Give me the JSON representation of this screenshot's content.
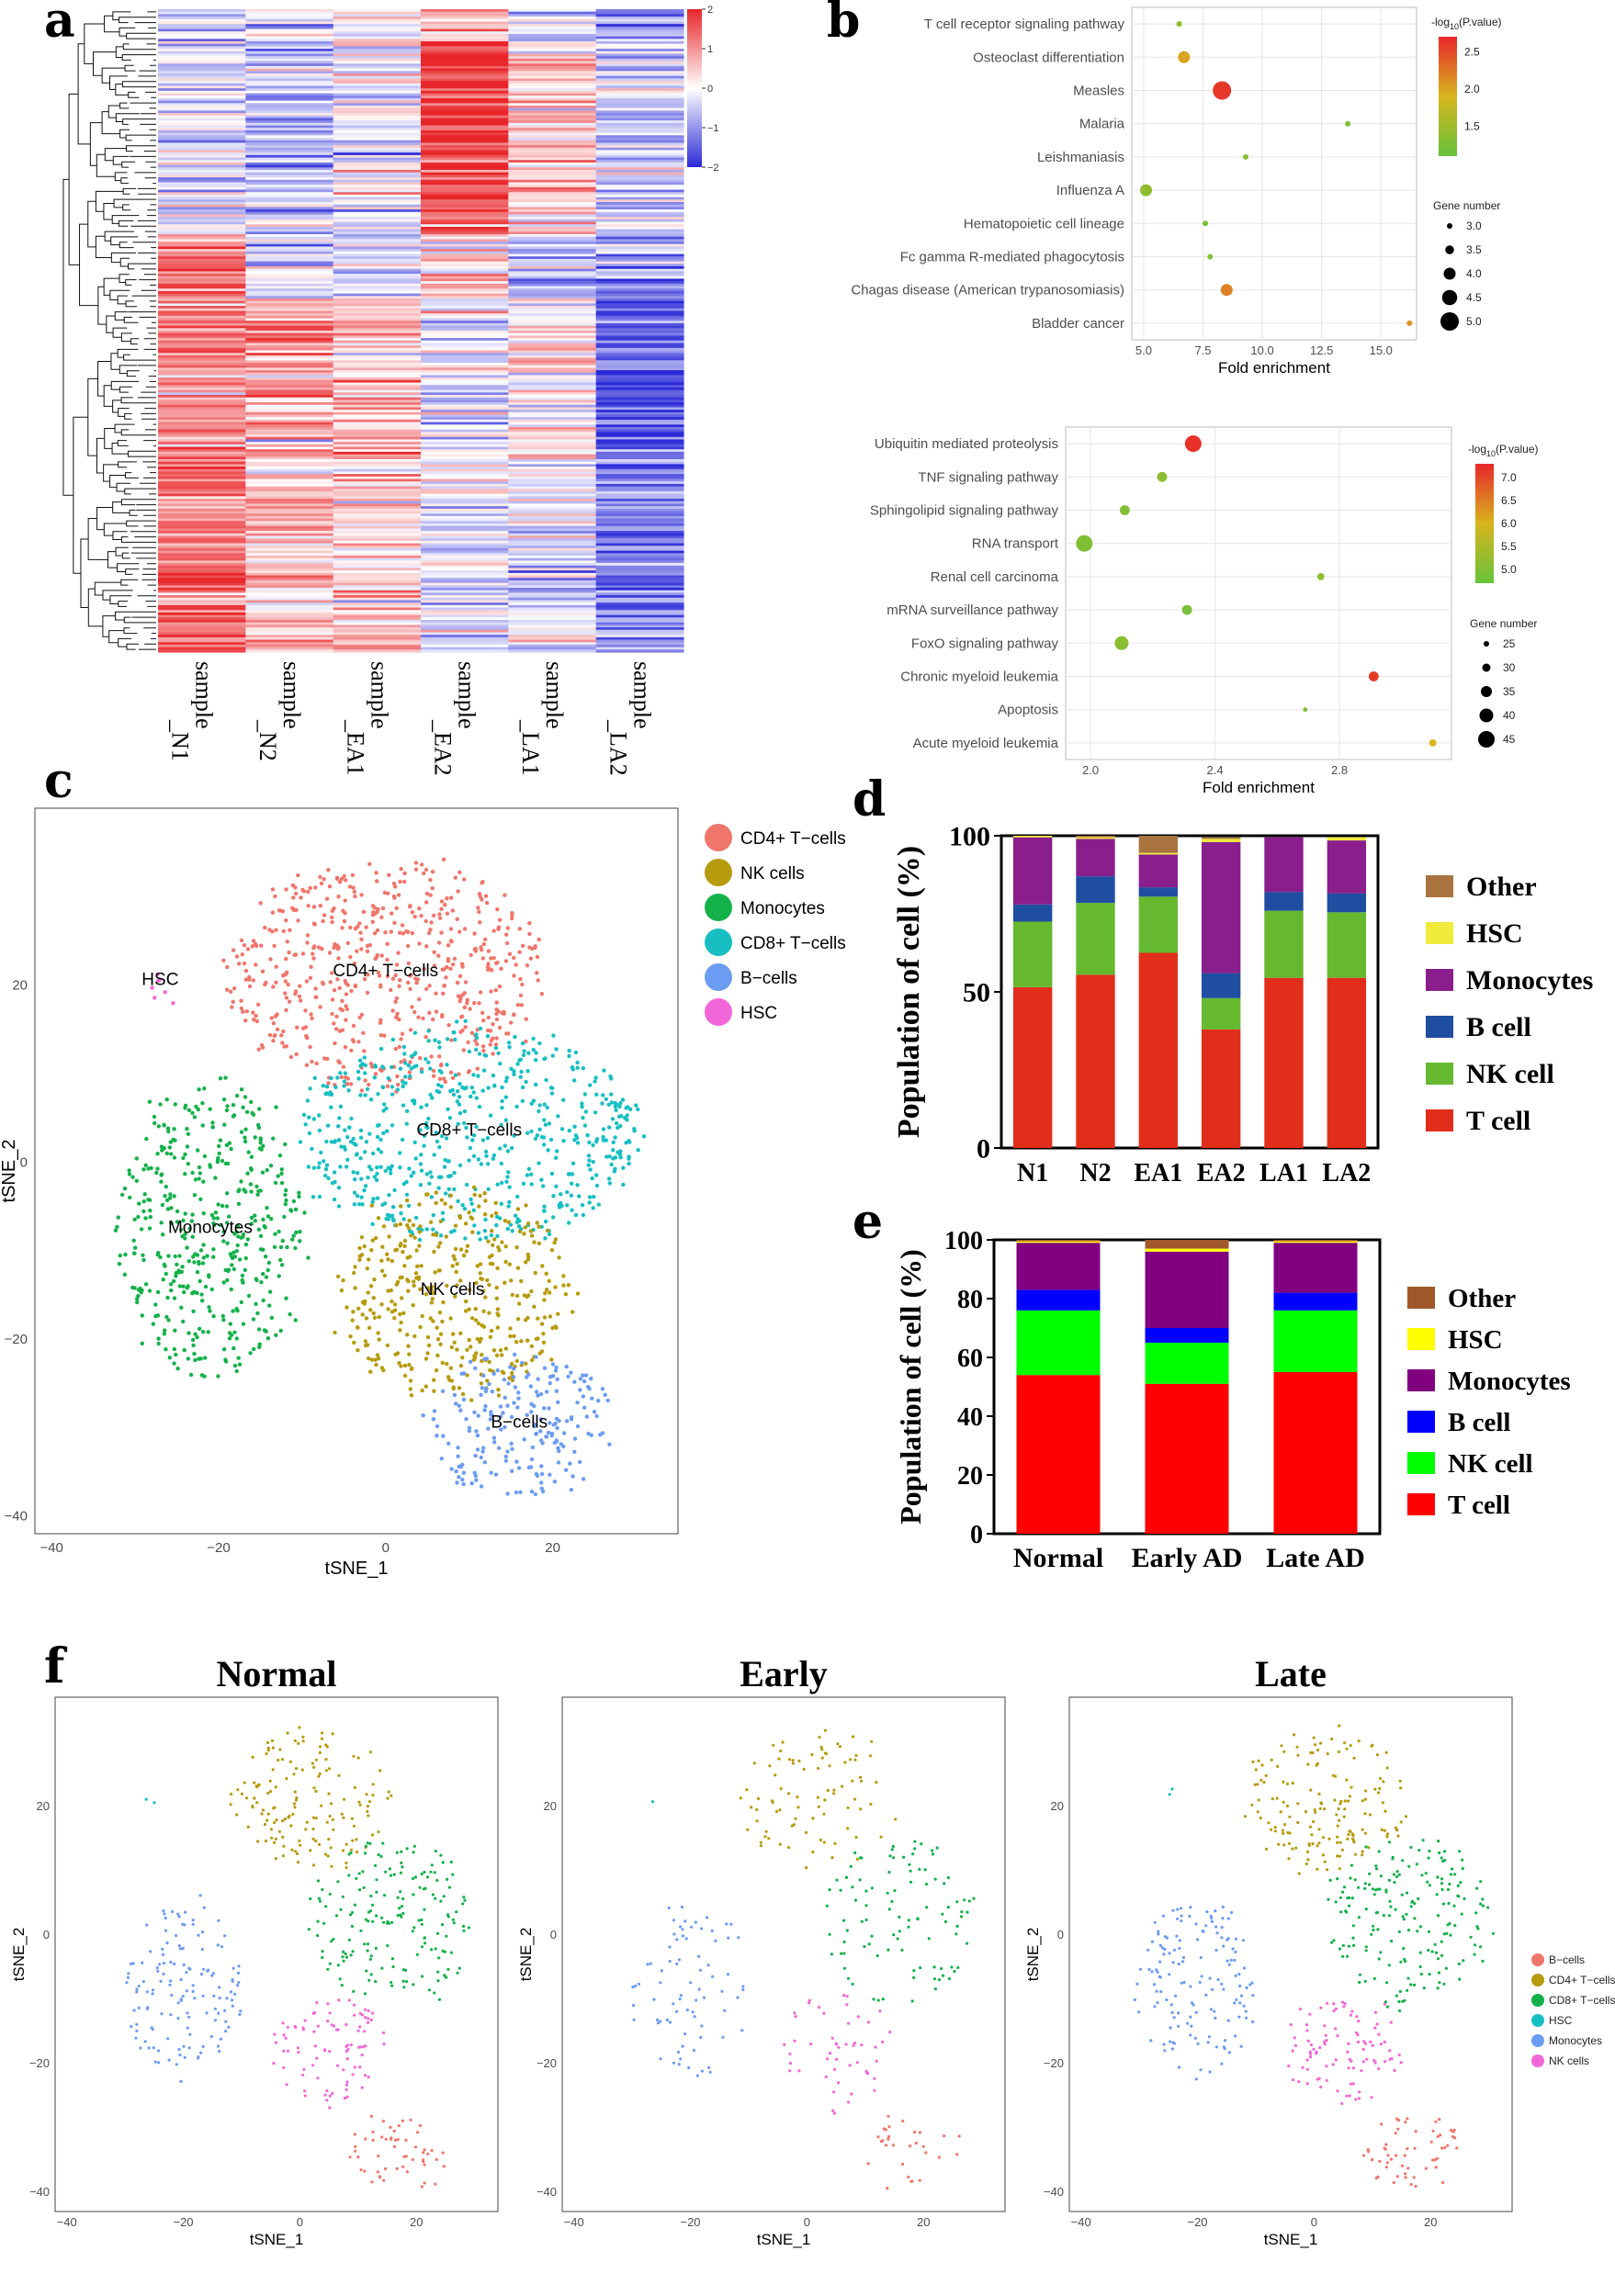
{
  "panel_labels": {
    "a": "a",
    "b": "b",
    "c": "c",
    "d": "d",
    "e": "e",
    "f": "f"
  },
  "colors": {
    "heat_low": "#2b2bd8",
    "heat_mid": "#ffffff",
    "heat_high": "#e8262a",
    "b_low": "#66c23a",
    "b_high": "#e8262a",
    "cd4": "#f0756b",
    "nk": "#b79b0f",
    "mono": "#14b14a",
    "cd8": "#17bfc2",
    "bcell": "#6b9cf2",
    "hsc": "#f267d8",
    "bar_other": "#a8733f",
    "bar_hsc": "#f0eb3a",
    "bar_mono": "#8a1e8c",
    "bar_bcell": "#1f4ea1",
    "bar_nk": "#66b92f",
    "bar_t": "#e22d1a",
    "e_other": "#a0582a",
    "e_hsc": "#ffff00",
    "e_mono": "#800080",
    "e_bcell": "#0000ff",
    "e_nk": "#00ff00",
    "e_t": "#ff0000"
  },
  "chart_data": [
    {
      "id": "a",
      "type": "heatmap",
      "columns": [
        "sample_N1",
        "sample_N2",
        "sample_EA1",
        "sample_EA2",
        "sample_LA1",
        "sample_LA2"
      ],
      "column_lines": [
        [
          "sample",
          "_N1"
        ],
        [
          "sample",
          "_N2"
        ],
        [
          "sample",
          "_EA1"
        ],
        [
          "sample",
          "_EA2"
        ],
        [
          "sample",
          "_LA1"
        ],
        [
          "sample",
          "_LA2"
        ]
      ],
      "colorbar_ticks": [
        2,
        1,
        0,
        -1,
        -2
      ],
      "row_blocks": [
        {
          "rows": "0-0.05",
          "values": [
            -0.4,
            -0.2,
            0.3,
            0.6,
            -0.3,
            -1.0
          ]
        },
        {
          "rows": "0.05-0.35",
          "values": [
            -0.3,
            -0.6,
            -0.1,
            1.8,
            0.4,
            -0.5
          ]
        },
        {
          "rows": "0.35-0.45",
          "values": [
            1.2,
            -0.3,
            -0.4,
            0.4,
            -0.6,
            -1.0
          ]
        },
        {
          "rows": "0.45-0.7",
          "values": [
            1.0,
            0.9,
            0.6,
            -0.4,
            0.3,
            -1.6
          ]
        },
        {
          "rows": "0.7-1.0",
          "values": [
            1.3,
            0.6,
            0.3,
            -0.3,
            -0.3,
            -1.2
          ]
        }
      ]
    },
    {
      "id": "b1",
      "type": "scatter",
      "categories": [
        "T cell receptor signaling pathway",
        "Osteoclast differentiation",
        "Measles",
        "Malaria",
        "Leishmaniasis",
        "Influenza A",
        "Hematopoietic cell lineage",
        "Fc gamma R-mediated phagocytosis",
        "Chagas disease (American trypanosomiasis)",
        "Bladder cancer"
      ],
      "points": [
        {
          "fold": 6.5,
          "gene": 3,
          "logp": 1.4
        },
        {
          "fold": 6.7,
          "gene": 4,
          "logp": 2.0
        },
        {
          "fold": 8.3,
          "gene": 5,
          "logp": 2.6
        },
        {
          "fold": 13.6,
          "gene": 3,
          "logp": 1.3
        },
        {
          "fold": 9.3,
          "gene": 3,
          "logp": 1.3
        },
        {
          "fold": 5.1,
          "gene": 4,
          "logp": 1.4
        },
        {
          "fold": 7.6,
          "gene": 3,
          "logp": 1.2
        },
        {
          "fold": 7.8,
          "gene": 3,
          "logp": 1.3
        },
        {
          "fold": 8.5,
          "gene": 4,
          "logp": 2.2
        },
        {
          "fold": 16.2,
          "gene": 3,
          "logp": 2.1
        }
      ],
      "xlabel": "Fold enrichment",
      "xlim": [
        4.5,
        16.5
      ],
      "xticks": [
        "5.0",
        "7.5",
        "10.0",
        "12.5",
        "15.0"
      ],
      "color_title": "-log10(P.value)",
      "color_title_prefix": "-log",
      "color_title_sub": "10",
      "color_title_suffix": "(P.value)",
      "color_ticks": [
        "2.5",
        "2.0",
        "1.5"
      ],
      "color_range": [
        1.1,
        2.7
      ],
      "size_title": "Gene number",
      "size_ticks": [
        "3.0",
        "3.5",
        "4.0",
        "4.5",
        "5.0"
      ]
    },
    {
      "id": "b2",
      "type": "scatter",
      "categories": [
        "Ubiquitin mediated proteolysis",
        "TNF signaling pathway",
        "Sphingolipid signaling pathway",
        "RNA transport",
        "Renal cell carcinoma",
        "mRNA surveillance pathway",
        "FoxO signaling pathway",
        "Chronic myeloid leukemia",
        "Apoptosis",
        "Acute myeloid leukemia"
      ],
      "points": [
        {
          "fold": 2.33,
          "gene": 45,
          "logp": 7.2
        },
        {
          "fold": 2.23,
          "gene": 33,
          "logp": 5.1
        },
        {
          "fold": 2.11,
          "gene": 33,
          "logp": 5.0
        },
        {
          "fold": 1.98,
          "gene": 45,
          "logp": 5.0
        },
        {
          "fold": 2.74,
          "gene": 28,
          "logp": 5.2
        },
        {
          "fold": 2.31,
          "gene": 33,
          "logp": 4.9
        },
        {
          "fold": 2.1,
          "gene": 40,
          "logp": 5.1
        },
        {
          "fold": 2.91,
          "gene": 33,
          "logp": 7.1
        },
        {
          "fold": 2.69,
          "gene": 23,
          "logp": 5.0
        },
        {
          "fold": 3.1,
          "gene": 28,
          "logp": 6.0
        }
      ],
      "xlabel": "Fold enrichment",
      "xlim": [
        1.92,
        3.16
      ],
      "xticks": [
        "2.0",
        "2.4",
        "2.8"
      ],
      "color_title": "-log10(P.value)",
      "color_title_prefix": "-log",
      "color_title_sub": "10",
      "color_title_suffix": "(P.value)",
      "color_ticks": [
        "7.0",
        "6.5",
        "6.0",
        "5.5",
        "5.0"
      ],
      "color_range": [
        4.7,
        7.3
      ],
      "size_title": "Gene number",
      "size_ticks": [
        "25",
        "30",
        "35",
        "40",
        "45"
      ]
    },
    {
      "id": "c",
      "type": "scatter",
      "xlabel": "tSNE_1",
      "ylabel": "tSNE_2",
      "xticks": [
        "−40",
        "−20",
        "0",
        "20"
      ],
      "yticks": [
        "20",
        "0",
        "−20",
        "−40"
      ],
      "xlim": [
        -42,
        35
      ],
      "ylim": [
        -42,
        40
      ],
      "legend": [
        "CD4+ T−cells",
        "NK cells",
        "Monocytes",
        "CD8+ T−cells",
        "B−cells",
        "HSC"
      ],
      "cluster_labels": [
        "CD4+ T−cells",
        "CD8+ T−cells",
        "Monocytes",
        "NK cells",
        "B−cells",
        "HSC"
      ],
      "clusters": [
        {
          "name": "CD4+ T−cells",
          "cx": 0,
          "cy": 21,
          "rx": 19,
          "ry": 13
        },
        {
          "name": "CD8+ T−cells",
          "cx": 10,
          "cy": 3,
          "rx": 21,
          "ry": 12
        },
        {
          "name": "Monocytes",
          "cx": -21,
          "cy": -8,
          "rx": 11,
          "ry": 17
        },
        {
          "name": "NK cells",
          "cx": 8,
          "cy": -15,
          "rx": 14,
          "ry": 12
        },
        {
          "name": "B−cells",
          "cx": 16,
          "cy": -30,
          "rx": 11,
          "ry": 8
        },
        {
          "name": "HSC",
          "cx": -27,
          "cy": 20,
          "rx": 1.5,
          "ry": 2
        }
      ]
    },
    {
      "id": "d",
      "type": "bar",
      "stacked": true,
      "categories": [
        "N1",
        "N2",
        "EA1",
        "EA2",
        "LA1",
        "LA2"
      ],
      "ylabel": "Population of cell  (%)",
      "ylim": [
        0,
        100
      ],
      "yticks": [
        "0",
        "50",
        "100"
      ],
      "series": [
        {
          "name": "T cell",
          "values": [
            51.5,
            55.5,
            62.5,
            38,
            54.5,
            54.5
          ]
        },
        {
          "name": "NK cell",
          "values": [
            21,
            23,
            18,
            10,
            21.5,
            21
          ]
        },
        {
          "name": "B cell",
          "values": [
            5.5,
            8.5,
            3,
            8,
            6,
            6
          ]
        },
        {
          "name": "Monocytes",
          "values": [
            21.5,
            12,
            10.5,
            42,
            17.5,
            17
          ]
        },
        {
          "name": "HSC",
          "values": [
            0.5,
            0.5,
            0.5,
            1,
            0,
            1
          ]
        },
        {
          "name": "Other",
          "values": [
            0,
            0.5,
            5.5,
            0.5,
            0,
            0
          ]
        }
      ],
      "legend_order": [
        "Other",
        "HSC",
        "Monocytes",
        "B cell",
        "NK cell",
        "T cell"
      ]
    },
    {
      "id": "e",
      "type": "bar",
      "stacked": true,
      "categories": [
        "Normal",
        "Early AD",
        "Late AD"
      ],
      "ylabel": "Population of cell (%)",
      "ylim": [
        0,
        100
      ],
      "yticks": [
        "0",
        "20",
        "40",
        "60",
        "80",
        "100"
      ],
      "series": [
        {
          "name": "T cell",
          "values": [
            54,
            51,
            55
          ]
        },
        {
          "name": "NK cell",
          "values": [
            22,
            14,
            21
          ]
        },
        {
          "name": "B cell",
          "values": [
            7,
            5,
            6
          ]
        },
        {
          "name": "Monocytes",
          "values": [
            16,
            26,
            17
          ]
        },
        {
          "name": "HSC",
          "values": [
            0.5,
            1,
            0.5
          ]
        },
        {
          "name": "Other",
          "values": [
            0.5,
            3,
            0.5
          ]
        }
      ],
      "legend_order": [
        "Other",
        "HSC",
        "Monocytes",
        "B cell",
        "NK cell",
        "T cell"
      ]
    },
    {
      "id": "f",
      "type": "scatter",
      "panels": [
        "Normal",
        "Early",
        "Late"
      ],
      "xlabel": "tSNE_1",
      "ylabel": "tSNE_2",
      "xticks": [
        "−40",
        "−20",
        "0",
        "20"
      ],
      "yticks": [
        "20",
        "0",
        "−20",
        "−40"
      ],
      "xlim": [
        -42,
        34
      ],
      "ylim": [
        -43,
        37
      ],
      "legend": [
        "B−cells",
        "CD4+ T−cells",
        "CD8+ T−cells",
        "HSC",
        "Monocytes",
        "NK cells"
      ],
      "clusters": [
        {
          "name": "CD4+ T−cells",
          "cx": 2,
          "cy": 21,
          "rx": 14,
          "ry": 11
        },
        {
          "name": "CD8+ T−cells",
          "cx": 16,
          "cy": 2,
          "rx": 14,
          "ry": 13
        },
        {
          "name": "Monocytes",
          "cx": -20,
          "cy": -8,
          "rx": 10,
          "ry": 14
        },
        {
          "name": "NK cells",
          "cx": 5,
          "cy": -18,
          "rx": 10,
          "ry": 9
        },
        {
          "name": "B−cells",
          "cx": 17,
          "cy": -34,
          "rx": 9,
          "ry": 6
        },
        {
          "name": "HSC",
          "cx": -25,
          "cy": 21,
          "rx": 1,
          "ry": 1.5
        }
      ]
    }
  ]
}
